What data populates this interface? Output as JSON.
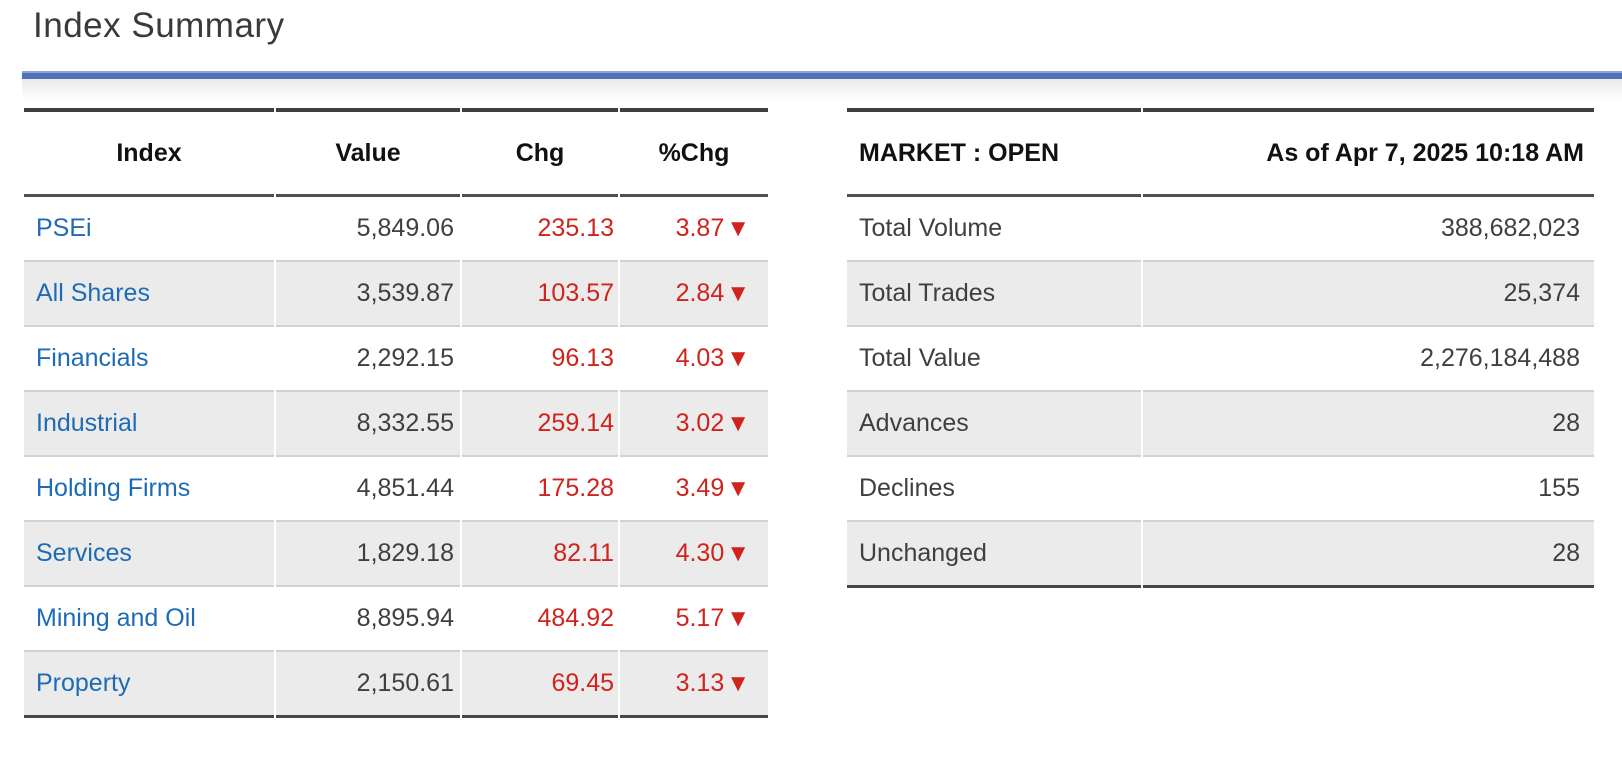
{
  "page": {
    "title": "Index Summary"
  },
  "colors": {
    "accent_bar_blue": "#5070b6",
    "accent_bar_highlight": "#8ea6d8",
    "link_blue": "#1e6bb5",
    "negative_red": "#d0231c",
    "row_alt_gray": "#ebebeb",
    "border_dark": "#3e3e3e",
    "text_dark": "#3f3f3f"
  },
  "icons": {
    "down_arrow": "▼"
  },
  "index_table": {
    "headers": [
      "Index",
      "Value",
      "Chg",
      "%Chg"
    ],
    "rows": [
      {
        "name": "PSEi",
        "value": "5,849.06",
        "chg": "235.13",
        "pct_chg": "3.87",
        "direction": "down"
      },
      {
        "name": "All Shares",
        "value": "3,539.87",
        "chg": "103.57",
        "pct_chg": "2.84",
        "direction": "down"
      },
      {
        "name": "Financials",
        "value": "2,292.15",
        "chg": "96.13",
        "pct_chg": "4.03",
        "direction": "down"
      },
      {
        "name": "Industrial",
        "value": "8,332.55",
        "chg": "259.14",
        "pct_chg": "3.02",
        "direction": "down"
      },
      {
        "name": "Holding Firms",
        "value": "4,851.44",
        "chg": "175.28",
        "pct_chg": "3.49",
        "direction": "down"
      },
      {
        "name": "Services",
        "value": "1,829.18",
        "chg": "82.11",
        "pct_chg": "4.30",
        "direction": "down"
      },
      {
        "name": "Mining and Oil",
        "value": "8,895.94",
        "chg": "484.92",
        "pct_chg": "5.17",
        "direction": "down"
      },
      {
        "name": "Property",
        "value": "2,150.61",
        "chg": "69.45",
        "pct_chg": "3.13",
        "direction": "down"
      }
    ]
  },
  "market_table": {
    "status_label": "MARKET : OPEN",
    "as_of": "As of Apr 7, 2025 10:18 AM",
    "rows": [
      {
        "label": "Total Volume",
        "value": "388,682,023"
      },
      {
        "label": "Total Trades",
        "value": "25,374"
      },
      {
        "label": "Total Value",
        "value": "2,276,184,488"
      },
      {
        "label": "Advances",
        "value": "28"
      },
      {
        "label": "Declines",
        "value": "155"
      },
      {
        "label": "Unchanged",
        "value": "28"
      }
    ]
  }
}
